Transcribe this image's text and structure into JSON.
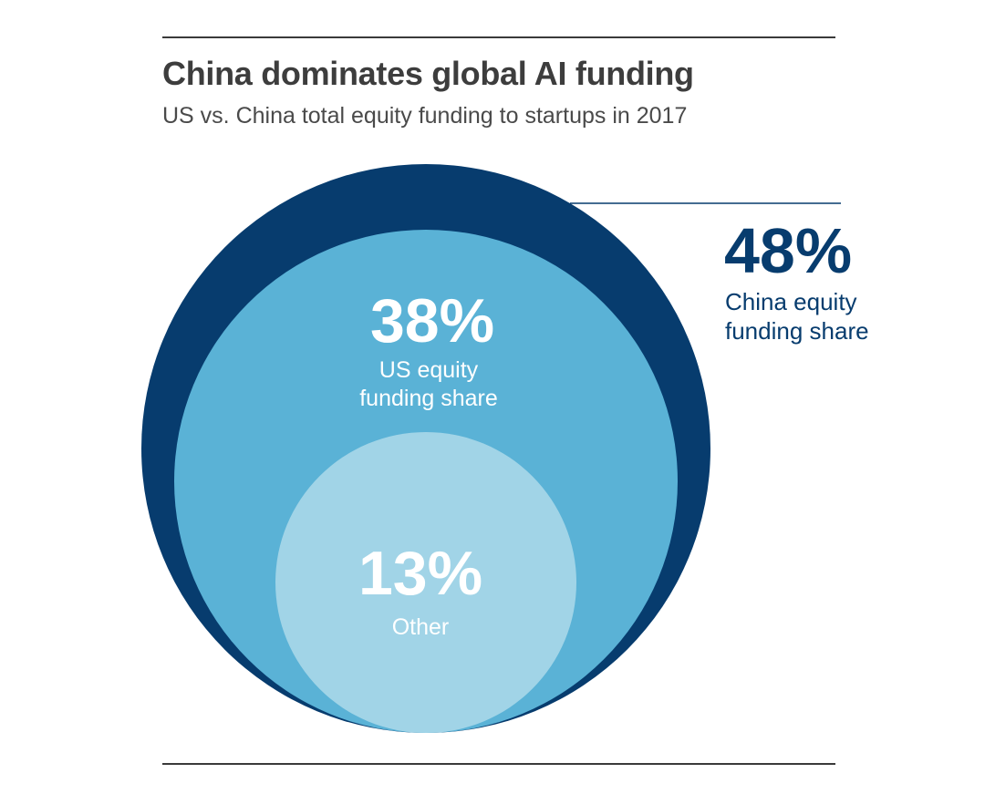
{
  "chart_data": {
    "type": "nested-circles",
    "title": "China dominates global AI funding",
    "subtitle": "US vs. China total equity funding to startups in 2017",
    "series": [
      {
        "name": "China equity funding share",
        "value": 48,
        "value_label": "48%",
        "label_lines": [
          "China equity",
          "funding share"
        ],
        "color": "#073c6e"
      },
      {
        "name": "US equity funding share",
        "value": 38,
        "value_label": "38%",
        "label_lines": [
          "US equity",
          "funding share"
        ],
        "color": "#5ab2d6"
      },
      {
        "name": "Other",
        "value": 13,
        "value_label": "13%",
        "label_lines": [
          "Other"
        ],
        "color": "#a1d4e7"
      }
    ]
  }
}
